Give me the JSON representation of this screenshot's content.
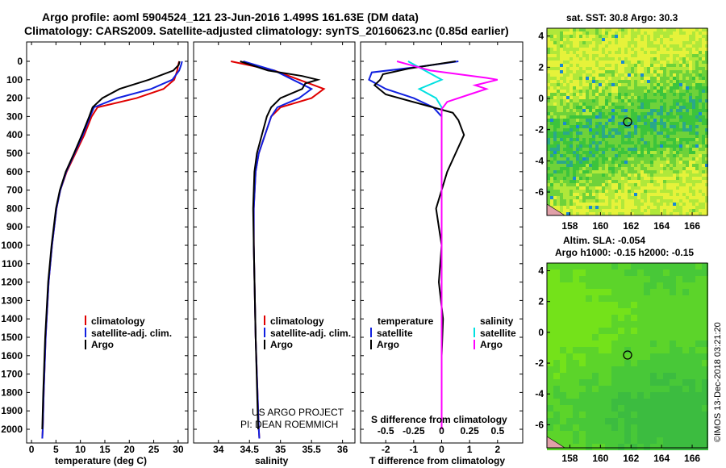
{
  "header": {
    "line1": "Argo profile: aoml 5904524_121 23-Jun-2016 1.499S 161.63E (DM data)",
    "line2": "Climatology: CARS2009. Satellite-adjusted climatology: synTS_20160623.nc (0.85d earlier)"
  },
  "colors": {
    "climatology": "#e00000",
    "satellite": "#1020e0",
    "argo": "#000000",
    "sat_salinity": "#00e0e0",
    "argo_salinity": "#ff00ff"
  },
  "map_sst": {
    "title": "sat. SST: 30.8 Argo: 30.3"
  },
  "map_sla": {
    "title1": "Altim. SLA: -0.054",
    "title2": "Argo h1000: -0.15 h2000: -0.15"
  },
  "project": {
    "line1": "US ARGO PROJECT",
    "line2": "PI: DEAN ROEMMICH"
  },
  "timestamp": "©IMOS 13-Dec-2018 03:21:20",
  "chart_data": [
    {
      "type": "line",
      "name": "temperature",
      "xlabel": "temperature (deg C)",
      "xlim": [
        -1,
        32
      ],
      "ylim": [
        2100,
        0
      ],
      "xticks": [
        0,
        5,
        10,
        15,
        20,
        25,
        30
      ],
      "yticks": [
        0,
        100,
        200,
        300,
        400,
        500,
        600,
        700,
        800,
        900,
        1000,
        1100,
        1200,
        1300,
        1400,
        1500,
        1600,
        1700,
        1800,
        1900,
        2000
      ],
      "legend": [
        "climatology",
        "satellite-adj. clim.",
        "Argo"
      ],
      "series": [
        {
          "name": "climatology",
          "depth": [
            0,
            20,
            50,
            100,
            150,
            200,
            250,
            300,
            400,
            500,
            600,
            700,
            800,
            1000,
            1200,
            1500,
            1800,
            2000,
            2050
          ],
          "values": [
            30.2,
            30.0,
            29.8,
            29.2,
            27.0,
            21.5,
            13.5,
            12.3,
            10.8,
            9.0,
            7.2,
            5.9,
            5.1,
            4.2,
            3.5,
            2.9,
            2.5,
            2.3,
            2.2
          ]
        },
        {
          "name": "satellite-adj. clim.",
          "depth": [
            0,
            20,
            50,
            100,
            150,
            200,
            250,
            300,
            400,
            500,
            600,
            700,
            800,
            1000,
            1200,
            1500,
            1800,
            2000,
            2050
          ],
          "values": [
            30.8,
            30.6,
            30.2,
            28.8,
            24.5,
            17.5,
            12.8,
            12.0,
            10.5,
            8.8,
            7.1,
            5.9,
            5.1,
            4.2,
            3.5,
            2.9,
            2.5,
            2.3,
            2.2
          ]
        },
        {
          "name": "Argo",
          "depth": [
            0,
            20,
            50,
            100,
            150,
            200,
            250,
            300,
            400,
            500,
            600,
            700,
            800,
            1000,
            1200,
            1500,
            1800,
            2000
          ],
          "values": [
            30.3,
            30.1,
            29.0,
            24.0,
            18.0,
            14.5,
            12.5,
            11.8,
            10.3,
            8.7,
            7.0,
            5.8,
            5.0,
            4.1,
            3.4,
            2.8,
            2.4,
            2.2
          ]
        }
      ]
    },
    {
      "type": "line",
      "name": "salinity",
      "xlabel": "salinity",
      "xlim": [
        33.6,
        36.2
      ],
      "ylim": [
        2100,
        0
      ],
      "xticks": [
        34,
        34.5,
        35,
        35.5,
        36
      ],
      "legend": [
        "climatology",
        "satellite-adj. clim.",
        "Argo"
      ],
      "series": [
        {
          "name": "climatology",
          "depth": [
            0,
            50,
            100,
            150,
            200,
            250,
            300,
            400,
            500,
            600,
            800,
            1000,
            1500,
            2000,
            2050
          ],
          "values": [
            34.2,
            34.9,
            35.3,
            35.7,
            35.5,
            35.0,
            34.85,
            34.75,
            34.65,
            34.6,
            34.57,
            34.57,
            34.6,
            34.65,
            34.66
          ]
        },
        {
          "name": "satellite-adj. clim.",
          "depth": [
            0,
            50,
            100,
            150,
            200,
            250,
            300,
            400,
            500,
            600,
            800,
            1000,
            1500,
            2000,
            2050
          ],
          "values": [
            34.4,
            34.9,
            35.2,
            35.5,
            35.3,
            34.95,
            34.85,
            34.75,
            34.65,
            34.6,
            34.57,
            34.57,
            34.6,
            34.65,
            34.66
          ]
        },
        {
          "name": "Argo",
          "depth": [
            0,
            50,
            80,
            100,
            120,
            150,
            200,
            250,
            300,
            400,
            500,
            600,
            800,
            1000,
            1500,
            2000
          ],
          "values": [
            34.35,
            34.8,
            35.35,
            35.6,
            35.4,
            35.35,
            35.0,
            34.85,
            34.78,
            34.7,
            34.62,
            34.58,
            34.56,
            34.57,
            34.6,
            34.64
          ]
        }
      ]
    },
    {
      "type": "line",
      "name": "differences",
      "xlabel": "T difference from climatology",
      "xlabel2": "S difference from climatology",
      "xlim": [
        -2.9,
        2.9
      ],
      "ylim": [
        2100,
        0
      ],
      "xticks": [
        -2,
        -1,
        0,
        1,
        2
      ],
      "xticks2": [
        "-0.5",
        "-0.25",
        "0",
        "0.25",
        "0.5"
      ],
      "legend_left_title": "temperature",
      "legend_right_title": "salinity",
      "legend_left": [
        "satellite",
        "Argo"
      ],
      "legend_right": [
        "satellite",
        "Argo"
      ],
      "series": [
        {
          "name": "T satellite",
          "depth": [
            0,
            30,
            60,
            100,
            150,
            200,
            250,
            300,
            500,
            1000,
            2000
          ],
          "values": [
            0.6,
            -0.8,
            -2.5,
            -2.6,
            -2.0,
            -1.0,
            -0.3,
            0.0,
            0.0,
            0.0,
            0.0
          ]
        },
        {
          "name": "T Argo",
          "depth": [
            0,
            40,
            70,
            100,
            130,
            180,
            230,
            280,
            320,
            400,
            500,
            600,
            700,
            800,
            900,
            1000,
            1200,
            1400,
            1600,
            1800,
            2000
          ],
          "values": [
            0.5,
            -1.2,
            -2.1,
            -2.2,
            -2.4,
            -2.0,
            -0.8,
            0.4,
            0.6,
            0.8,
            0.5,
            0.2,
            0.0,
            -0.2,
            -0.1,
            0.0,
            -0.1,
            0.05,
            0.0,
            0.0,
            0.0
          ]
        },
        {
          "name": "S satellite",
          "depth": [
            0,
            50,
            100,
            150,
            200,
            250,
            300,
            500,
            1000,
            2000
          ],
          "values": [
            -0.3,
            -0.15,
            0.0,
            -0.2,
            -0.05,
            0.0,
            0.0,
            0.0,
            0.0,
            0.0
          ]
        },
        {
          "name": "S Argo",
          "depth": [
            0,
            50,
            90,
            100,
            130,
            150,
            180,
            220,
            260,
            300,
            500,
            1000,
            2000
          ],
          "values": [
            -0.4,
            -0.1,
            0.4,
            0.5,
            0.3,
            0.4,
            0.25,
            0.05,
            0.0,
            0.0,
            0.0,
            0.0,
            0.0
          ]
        }
      ]
    },
    {
      "type": "heatmap",
      "name": "sst-map",
      "title": "sat. SST: 30.8 Argo: 30.3",
      "xlim": [
        156.5,
        167
      ],
      "ylim": [
        -7.5,
        4.5
      ],
      "xticks": [
        158,
        160,
        162,
        164,
        166
      ],
      "yticks": [
        4,
        2,
        0,
        -2,
        -4,
        -6
      ],
      "marker": {
        "lon": 161.63,
        "lat": -1.499
      }
    },
    {
      "type": "heatmap",
      "name": "sla-map",
      "title": "Altim. SLA: -0.054",
      "xlim": [
        156.5,
        167
      ],
      "ylim": [
        -7.5,
        4.5
      ],
      "xticks": [
        158,
        160,
        162,
        164,
        166
      ],
      "yticks": [
        4,
        2,
        0,
        -2,
        -4,
        -6
      ],
      "marker": {
        "lon": 161.63,
        "lat": -1.499
      }
    }
  ]
}
